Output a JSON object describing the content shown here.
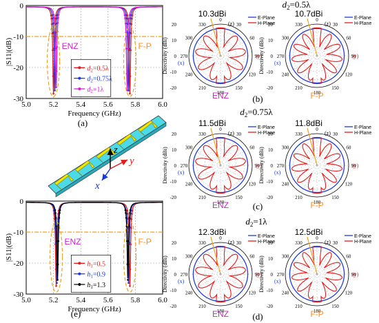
{
  "colors": {
    "red": "#e31b1b",
    "blue": "#1a3bd8",
    "magenta": "#d61cd0",
    "black": "#000000",
    "orange": "#f0a020",
    "enz": "#cc22cc",
    "fp": "#ff8c1a",
    "cyan": "#4dd9e6",
    "yellow": "#f2e600",
    "gray": "#888888"
  },
  "chart_data": [
    {
      "id": "a",
      "type": "line",
      "panel_label": "(a)",
      "xlabel": "Frequency (GHz)",
      "ylabel": "|S11|(dB)",
      "xlim": [
        5.0,
        6.0
      ],
      "ylim": [
        -30,
        0
      ],
      "xticks": [
        "5.0",
        "5.2",
        "5.4",
        "5.6",
        "5.8",
        "6.0"
      ],
      "yticks": [
        "0",
        "-10",
        "-20",
        "-30"
      ],
      "reference_line": -10,
      "region_labels": [
        "ENZ",
        "F-P"
      ],
      "series": [
        {
          "name": "d2=0.5λ",
          "color": "red",
          "notches": [
            {
              "f": 5.2,
              "depth": -28
            },
            {
              "f": 5.76,
              "depth": -28
            }
          ]
        },
        {
          "name": "d2=0.75λ",
          "color": "blue",
          "notches": [
            {
              "f": 5.21,
              "depth": -27
            },
            {
              "f": 5.75,
              "depth": -27
            }
          ]
        },
        {
          "name": "d2=1λ",
          "color": "magenta",
          "notches": [
            {
              "f": 5.22,
              "depth": -26
            },
            {
              "f": 5.74,
              "depth": -27
            }
          ]
        }
      ],
      "legend": [
        {
          "prefix": "d",
          "sub": "2",
          "suffix": "=0.5λ"
        },
        {
          "prefix": "d",
          "sub": "2",
          "suffix": "=0.75λ"
        },
        {
          "prefix": "d",
          "sub": "2",
          "suffix": "=1λ"
        }
      ]
    },
    {
      "id": "e",
      "type": "line",
      "panel_label": "(e)",
      "xlabel": "Frequency (GHz)",
      "ylabel": "|S11|(dB)",
      "xlim": [
        5.0,
        6.0
      ],
      "ylim": [
        -30,
        0
      ],
      "xticks": [
        "5.0",
        "5.2",
        "5.4",
        "5.6",
        "5.8",
        "6.0"
      ],
      "yticks": [
        "0",
        "-10",
        "-20",
        "-30"
      ],
      "reference_line": -10,
      "region_labels": [
        "ENZ",
        "F-P"
      ],
      "series": [
        {
          "name": "h1=0.5",
          "color": "red",
          "notches": [
            {
              "f": 5.22,
              "depth": -27
            },
            {
              "f": 5.76,
              "depth": -27
            }
          ]
        },
        {
          "name": "h1=0.9",
          "color": "blue",
          "notches": [
            {
              "f": 5.225,
              "depth": -26
            },
            {
              "f": 5.75,
              "depth": -26
            }
          ]
        },
        {
          "name": "h1=1.3",
          "color": "black",
          "notches": [
            {
              "f": 5.23,
              "depth": -25
            },
            {
              "f": 5.745,
              "depth": -25
            }
          ]
        }
      ],
      "legend": [
        {
          "prefix": "h",
          "sub": "1",
          "suffix": "=0.5"
        },
        {
          "prefix": "h",
          "sub": "1",
          "suffix": "=0.9"
        },
        {
          "prefix": "h",
          "sub": "1",
          "suffix": "=1.3"
        }
      ]
    }
  ],
  "polar_common": {
    "type": "polar",
    "ylabel": "Directivity (dBi)",
    "rticks": [
      "20",
      "10",
      "0",
      "-10",
      "-20"
    ],
    "angle_labels": [
      "0",
      "30",
      "60",
      "90",
      "120",
      "150",
      "180",
      "210",
      "240",
      "270",
      "300",
      "330"
    ],
    "top_axis": "(z)",
    "right_axis": "(y)",
    "left_axis": "(x)",
    "legend": [
      "E-Plane",
      "H-Plane"
    ]
  },
  "polar_plots": [
    {
      "id": "p1",
      "gain": "10.3dBi",
      "mode": "ENZ",
      "petals": 9
    },
    {
      "id": "p2",
      "gain": "10.7dBi",
      "mode": "F-P",
      "petals": 11
    },
    {
      "id": "p3",
      "gain": "11.5dBi",
      "mode": "ENZ",
      "petals": 9
    },
    {
      "id": "p4",
      "gain": "11.8dBi",
      "mode": "F-P",
      "petals": 11
    },
    {
      "id": "p5",
      "gain": "12.3dBi",
      "mode": "ENZ",
      "petals": 9
    },
    {
      "id": "p6",
      "gain": "12.5dBi",
      "mode": "F-P",
      "petals": 11
    }
  ],
  "row_titles": [
    {
      "prefix": "d",
      "sub": "2",
      "suffix": "=0.5λ"
    },
    {
      "prefix": "d",
      "sub": "2",
      "suffix": "=0.75λ"
    },
    {
      "prefix": "d",
      "sub": "2",
      "suffix": "=1λ"
    }
  ],
  "panel_labels": [
    "(b)",
    "(c)",
    "(d)"
  ],
  "axes3d": {
    "z": "z",
    "y": "y",
    "x": "x"
  }
}
